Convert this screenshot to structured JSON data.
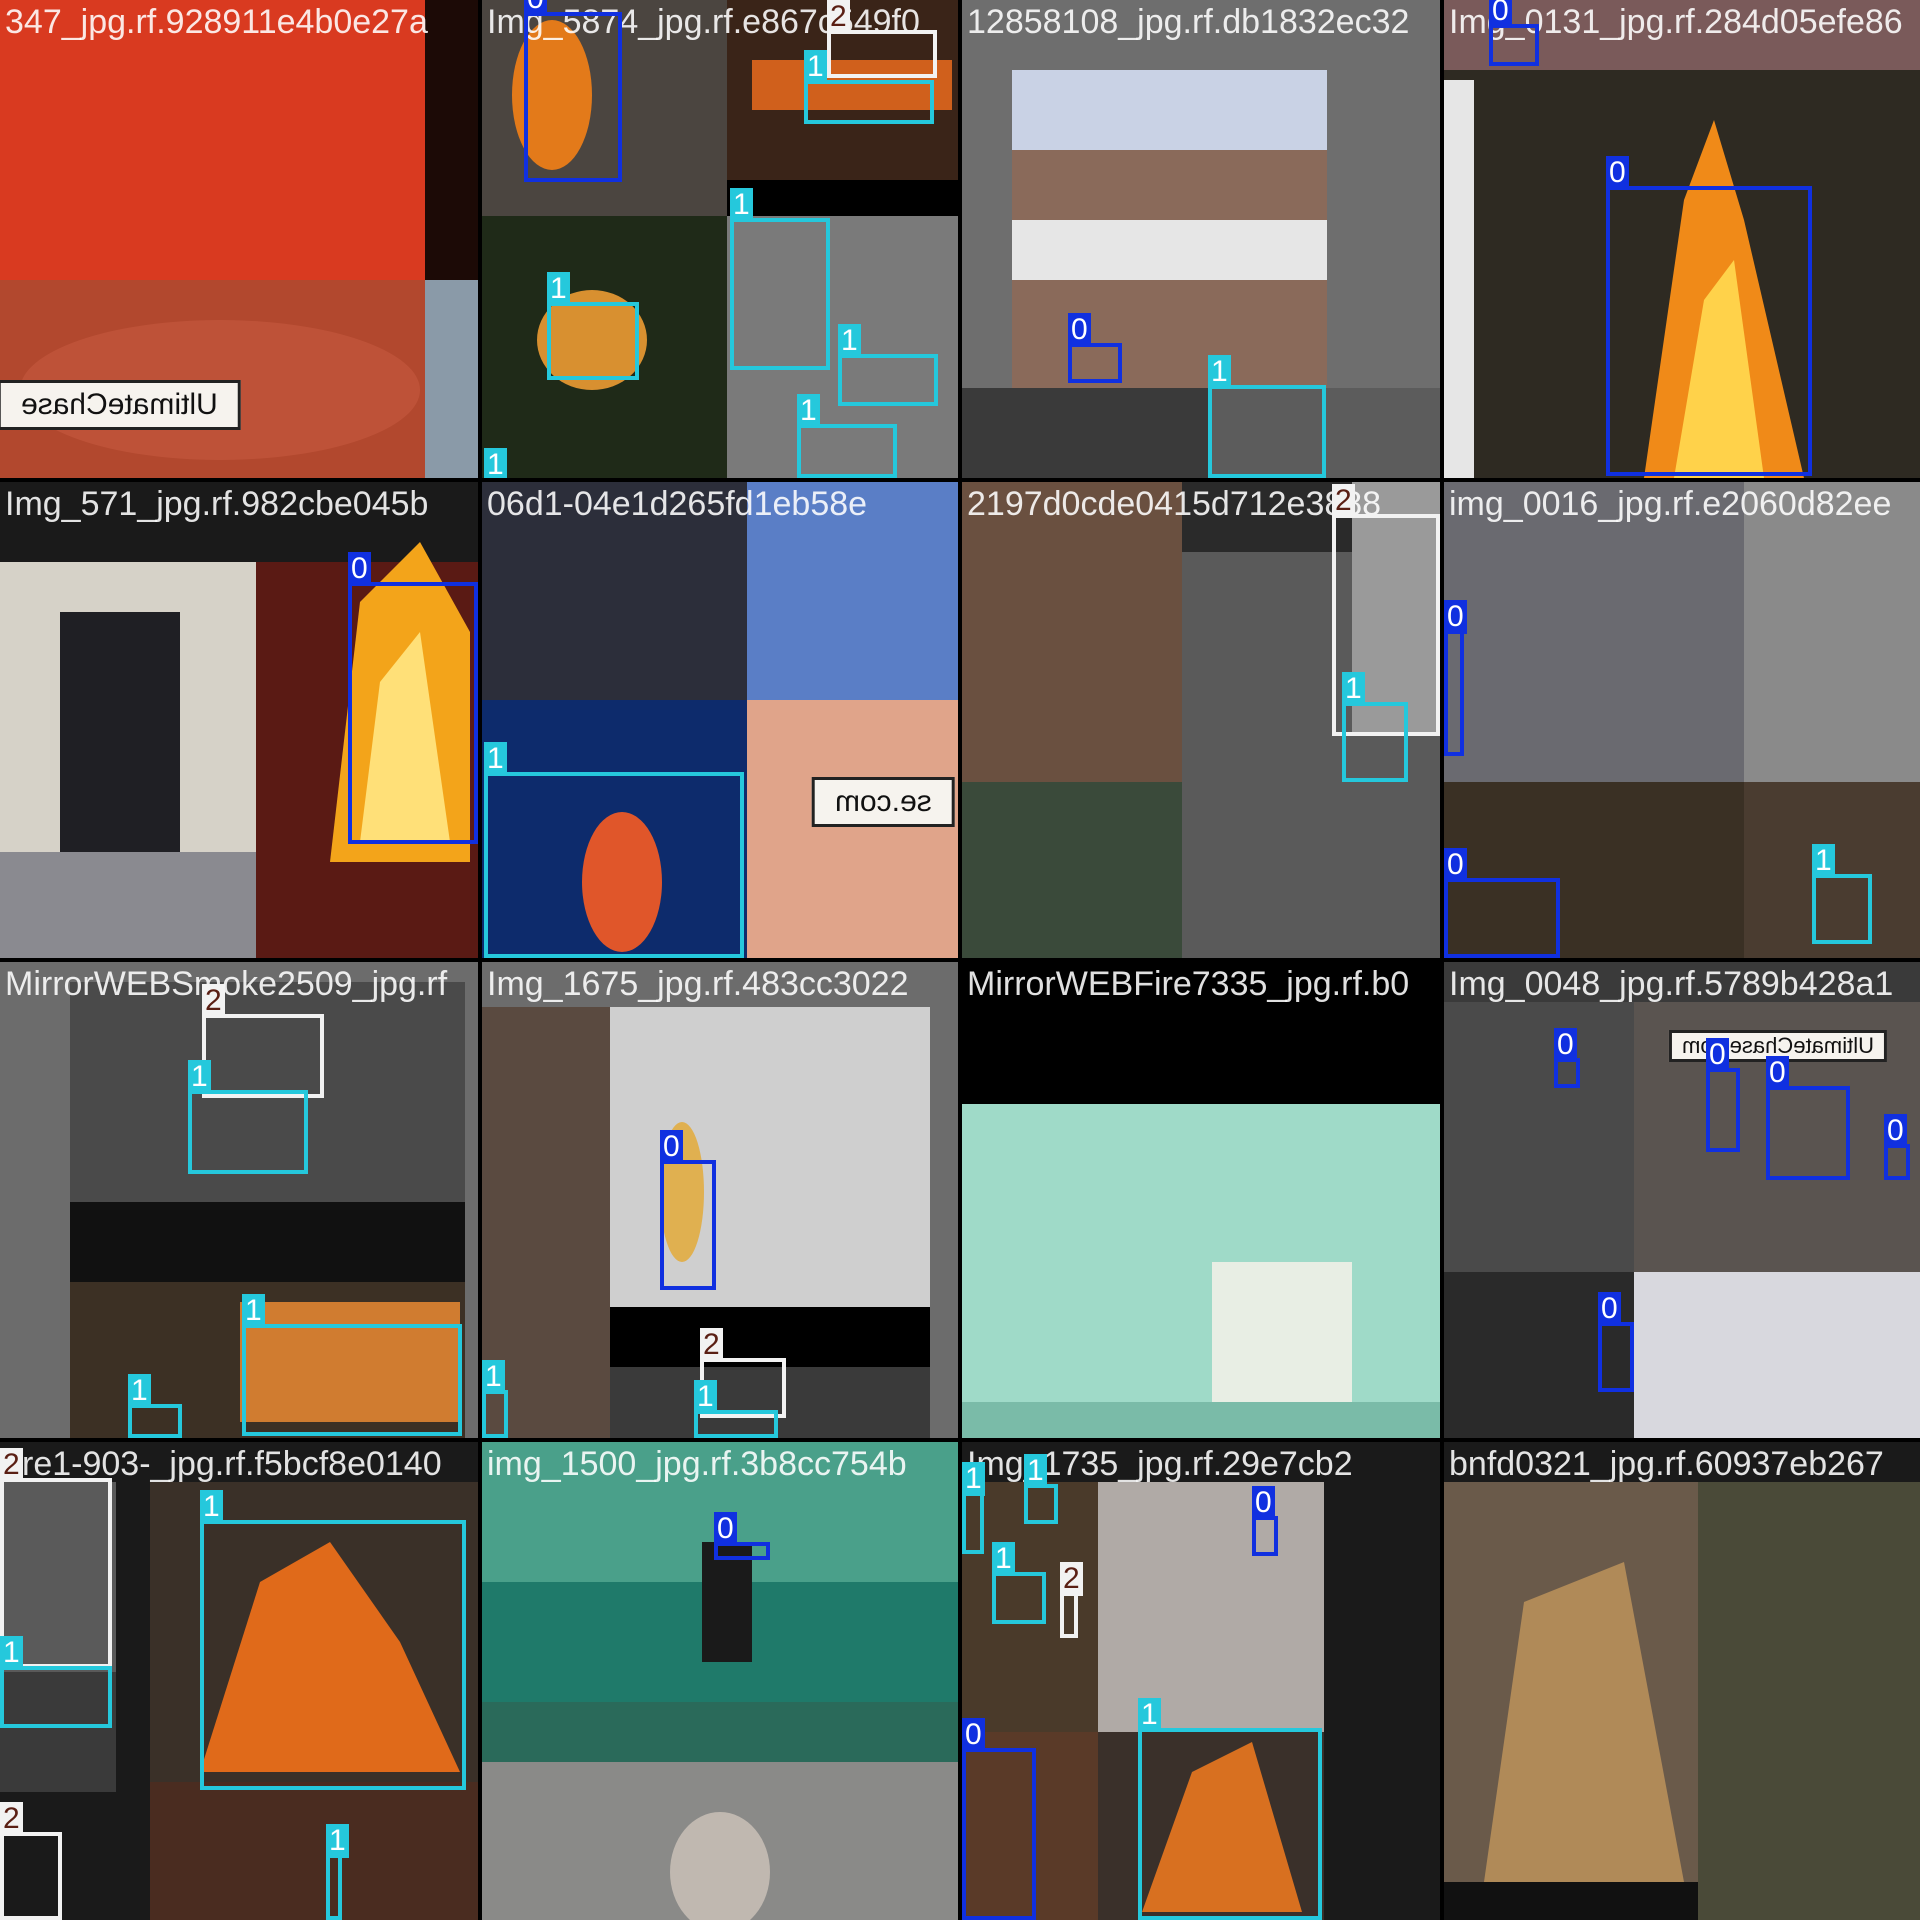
{
  "colors": {
    "class_0": "#1030e0",
    "class_1": "#25c8dc",
    "class_2": "#f2f2f2",
    "class_2_text": "#5a1f14"
  },
  "tiles": [
    {
      "title": "347_jpg.rf.928911e4b0e27a",
      "overlay_text": "UltimateChase",
      "image": "red-blurred-closeup-with-watermark",
      "boxes": []
    },
    {
      "title": "Img_5874_jpg.rf.e867c549f0",
      "image": "fire-collage-buildings-and-smoke",
      "boxes": [
        {
          "label": "0"
        },
        {
          "label": "2"
        },
        {
          "label": "1"
        },
        {
          "label": "1"
        },
        {
          "label": "1"
        },
        {
          "label": "1"
        },
        {
          "label": "1"
        },
        {
          "label": "1"
        }
      ]
    },
    {
      "title": "12858108_jpg.rf.db1832ec32",
      "image": "hillside-with-fence-and-smoke",
      "boxes": [
        {
          "label": "0"
        },
        {
          "label": "1"
        }
      ]
    },
    {
      "title": "Img_0131_jpg.rf.284d05efe86",
      "image": "forest-fire-at-night",
      "boxes": [
        {
          "label": "0"
        },
        {
          "label": "0"
        }
      ]
    },
    {
      "title": "Img_571_jpg.rf.982cbe045b",
      "image": "kitchen-woman-and-fireplace",
      "boxes": [
        {
          "label": "0"
        }
      ]
    },
    {
      "title": "06d1-04e1d265fd1eb58e",
      "overlay_text": "se.com",
      "image": "blue-night-fire-and-tiles",
      "boxes": [
        {
          "label": "1"
        }
      ]
    },
    {
      "title": "2197d0cde0415d712e3888",
      "image": "building-fire-black-and-white",
      "boxes": [
        {
          "label": "2"
        },
        {
          "label": "1"
        }
      ]
    },
    {
      "title": "img_0016_jpg.rf.e2060d82ee",
      "image": "sink-forest-and-fence",
      "boxes": [
        {
          "label": "0"
        },
        {
          "label": "0"
        },
        {
          "label": "1"
        }
      ]
    },
    {
      "title": "MirrorWEBSmoke2509_jpg.rf",
      "image": "road-bus-fire-and-burning-house",
      "boxes": [
        {
          "label": "2"
        },
        {
          "label": "1"
        },
        {
          "label": "1"
        },
        {
          "label": "1"
        }
      ]
    },
    {
      "title": "Img_1675_jpg.rf.483cc3022",
      "image": "kitchen-sink-fire-and-news-frame",
      "boxes": [
        {
          "label": "0"
        },
        {
          "label": "1"
        },
        {
          "label": "2"
        },
        {
          "label": "1"
        }
      ]
    },
    {
      "title": "MirrorWEBFire7335_jpg.rf.b0",
      "image": "green-hallway",
      "boxes": []
    },
    {
      "title": "Img_0048_jpg.rf.5789b428a1",
      "overlay_text": "UltimateChase.com",
      "image": "cars-forest-fire-smoke",
      "boxes": [
        {
          "label": "0"
        },
        {
          "label": "0"
        },
        {
          "label": "0"
        },
        {
          "label": "0"
        },
        {
          "label": "0"
        }
      ]
    },
    {
      "title": "fire1-903-_jpg.rf.f5bcf8e0140",
      "image": "burning-brush-pile-collage",
      "boxes": [
        {
          "label": "2"
        },
        {
          "label": "1"
        },
        {
          "label": "1"
        },
        {
          "label": "2"
        },
        {
          "label": "1"
        }
      ]
    },
    {
      "title": "img_1500_jpg.rf.3b8cc754b",
      "image": "green-hallway-chair-and-smoke",
      "boxes": [
        {
          "label": "0"
        }
      ]
    },
    {
      "title": "Img_1735_jpg.rf.29e7cb2",
      "image": "house-fire-and-car-collage",
      "boxes": [
        {
          "label": "1"
        },
        {
          "label": "1"
        },
        {
          "label": "1"
        },
        {
          "label": "2"
        },
        {
          "label": "0"
        },
        {
          "label": "0"
        },
        {
          "label": "1"
        }
      ]
    },
    {
      "title": "bnfd0321_jpg.rf.60937eb267",
      "image": "wooden-chair-and-forest",
      "boxes": []
    }
  ]
}
